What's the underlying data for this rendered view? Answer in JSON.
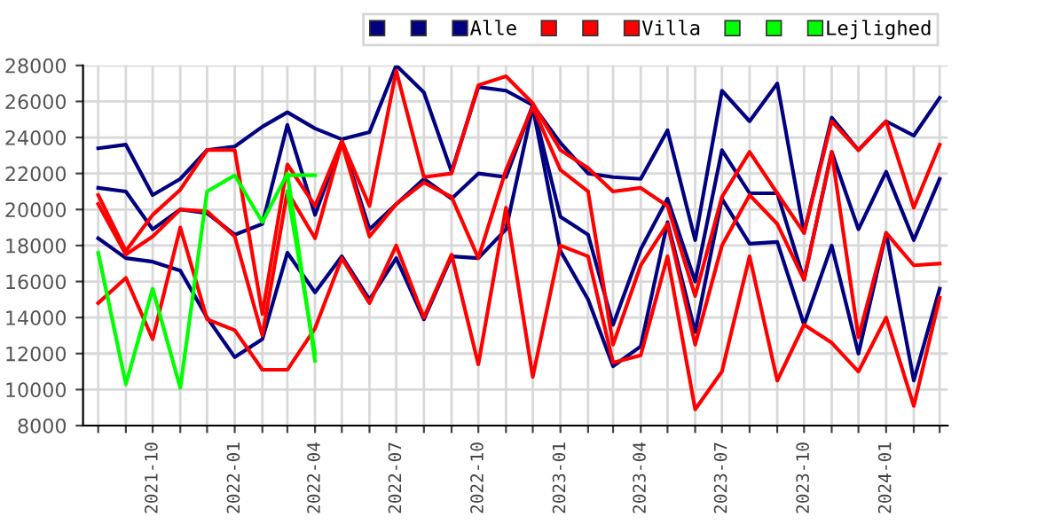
{
  "chart_data": {
    "type": "line",
    "x": [
      "2021-08",
      "2021-09",
      "2021-10",
      "2021-11",
      "2021-12",
      "2022-01",
      "2022-02",
      "2022-03",
      "2022-04",
      "2022-05",
      "2022-06",
      "2022-07",
      "2022-08",
      "2022-09",
      "2022-10",
      "2022-11",
      "2022-12",
      "2023-01",
      "2023-02",
      "2023-03",
      "2023-04",
      "2023-05",
      "2023-06",
      "2023-07",
      "2023-08",
      "2023-09",
      "2023-10",
      "2023-11",
      "2023-12",
      "2024-01",
      "2024-02",
      "2024-03"
    ],
    "series": [
      {
        "color": "#000080",
        "values": [
          23400,
          23600,
          20800,
          21700,
          23300,
          23500,
          24600,
          25400,
          24500,
          23900,
          24300,
          28000,
          26500,
          22100,
          26800,
          26600,
          25800,
          23700,
          22000,
          21800,
          21700,
          24400,
          18300,
          26600,
          24900,
          27000,
          18700,
          25100,
          23300,
          24900,
          24100,
          26200
        ]
      },
      {
        "color": "#000080",
        "values": [
          21200,
          21000,
          18900,
          20000,
          19800,
          18600,
          19200,
          24700,
          19700,
          23800,
          18900,
          20300,
          21700,
          20600,
          22000,
          21800,
          25800,
          19600,
          18600,
          13600,
          17800,
          20600,
          16000,
          23300,
          20900,
          20900,
          16100,
          23200,
          18900,
          22100,
          18300,
          21700
        ]
      },
      {
        "name": "Alle",
        "color": "#000080",
        "values": [
          18400,
          17300,
          17100,
          16600,
          14000,
          11800,
          12800,
          17600,
          15400,
          17400,
          15000,
          17300,
          13900,
          17400,
          17300,
          18900,
          25700,
          17700,
          15000,
          11300,
          12400,
          19300,
          13200,
          20600,
          18100,
          18200,
          13600,
          18000,
          12000,
          18700,
          10500,
          15600
        ]
      },
      {
        "color": "#ff0000",
        "values": [
          20800,
          17700,
          19700,
          21100,
          23300,
          23300,
          14200,
          22500,
          20200,
          23800,
          20200,
          27700,
          21800,
          22000,
          26900,
          27400,
          25900,
          23300,
          22300,
          21000,
          21200,
          20200,
          15200,
          20700,
          23200,
          20900,
          18700,
          24900,
          23300,
          24900,
          20100,
          23600
        ]
      },
      {
        "color": "#ff0000",
        "values": [
          20300,
          17500,
          18500,
          20000,
          19900,
          18500,
          13000,
          21000,
          18400,
          23700,
          18500,
          20300,
          21500,
          20700,
          17300,
          22200,
          25700,
          22200,
          21000,
          12500,
          16900,
          19200,
          12500,
          18000,
          20800,
          19200,
          16100,
          23200,
          12900,
          18700,
          16900,
          17000
        ]
      },
      {
        "name": "Villa",
        "color": "#ff0000",
        "values": [
          14800,
          16200,
          12800,
          19000,
          13900,
          13300,
          11100,
          11100,
          13400,
          17300,
          14800,
          18000,
          14000,
          17500,
          11400,
          20100,
          10700,
          18000,
          17400,
          11500,
          11900,
          17400,
          8900,
          11000,
          17400,
          10500,
          13600,
          12600,
          11000,
          14000,
          9100,
          15100
        ]
      },
      {
        "color": "#00ff00",
        "values": [
          null,
          null,
          null,
          null,
          null,
          null,
          null,
          21900,
          21900,
          null,
          null,
          null,
          null,
          null,
          null,
          null,
          null,
          null,
          null,
          null,
          null,
          null,
          null,
          null,
          null,
          null,
          null,
          null,
          null,
          null,
          null,
          null
        ]
      },
      {
        "color": "#00ff00",
        "values": [
          null,
          null,
          null,
          null,
          null,
          null,
          null,
          21000,
          12000,
          null,
          null,
          null,
          null,
          null,
          null,
          null,
          null,
          null,
          null,
          null,
          null,
          null,
          null,
          null,
          null,
          null,
          null,
          null,
          null,
          null,
          null,
          null
        ]
      },
      {
        "name": "Lejlighed",
        "color": "#00ff00",
        "values": [
          17600,
          10300,
          15600,
          10100,
          21000,
          21900,
          19300,
          22000,
          11600,
          null,
          null,
          null,
          null,
          null,
          null,
          null,
          null,
          null,
          null,
          null,
          null,
          null,
          null,
          null,
          null,
          null,
          null,
          null,
          null,
          null,
          null,
          null
        ]
      }
    ],
    "xlim": [
      "2021-07-15",
      "2024-03-10"
    ],
    "xticks": [
      {
        "value": "2021-08",
        "label": null
      },
      {
        "value": "2021-09",
        "label": null
      },
      {
        "value": "2021-10",
        "label": "2021-10"
      },
      {
        "value": "2021-11",
        "label": null
      },
      {
        "value": "2021-12",
        "label": null
      },
      {
        "value": "2022-01",
        "label": "2022-01"
      },
      {
        "value": "2022-02",
        "label": null
      },
      {
        "value": "2022-03",
        "label": null
      },
      {
        "value": "2022-04",
        "label": "2022-04"
      },
      {
        "value": "2022-05",
        "label": null
      },
      {
        "value": "2022-06",
        "label": null
      },
      {
        "value": "2022-07",
        "label": "2022-07"
      },
      {
        "value": "2022-08",
        "label": null
      },
      {
        "value": "2022-09",
        "label": null
      },
      {
        "value": "2022-10",
        "label": "2022-10"
      },
      {
        "value": "2022-11",
        "label": null
      },
      {
        "value": "2022-12",
        "label": null
      },
      {
        "value": "2023-01",
        "label": "2023-01"
      },
      {
        "value": "2023-02",
        "label": null
      },
      {
        "value": "2023-03",
        "label": null
      },
      {
        "value": "2023-04",
        "label": "2023-04"
      },
      {
        "value": "2023-05",
        "label": null
      },
      {
        "value": "2023-06",
        "label": null
      },
      {
        "value": "2023-07",
        "label": "2023-07"
      },
      {
        "value": "2023-08",
        "label": null
      },
      {
        "value": "2023-09",
        "label": null
      },
      {
        "value": "2023-10",
        "label": "2023-10"
      },
      {
        "value": "2023-11",
        "label": null
      },
      {
        "value": "2023-12",
        "label": null
      },
      {
        "value": "2024-01",
        "label": "2024-01"
      },
      {
        "value": "2024-02",
        "label": null
      },
      {
        "value": "2024-03",
        "label": null
      }
    ],
    "ylim": [
      8000,
      28000
    ],
    "yticks": [
      8000,
      10000,
      12000,
      14000,
      16000,
      18000,
      20000,
      22000,
      24000,
      26000,
      28000
    ],
    "grid": true,
    "legend": "top right",
    "marker": "none",
    "line_style": "solid"
  }
}
